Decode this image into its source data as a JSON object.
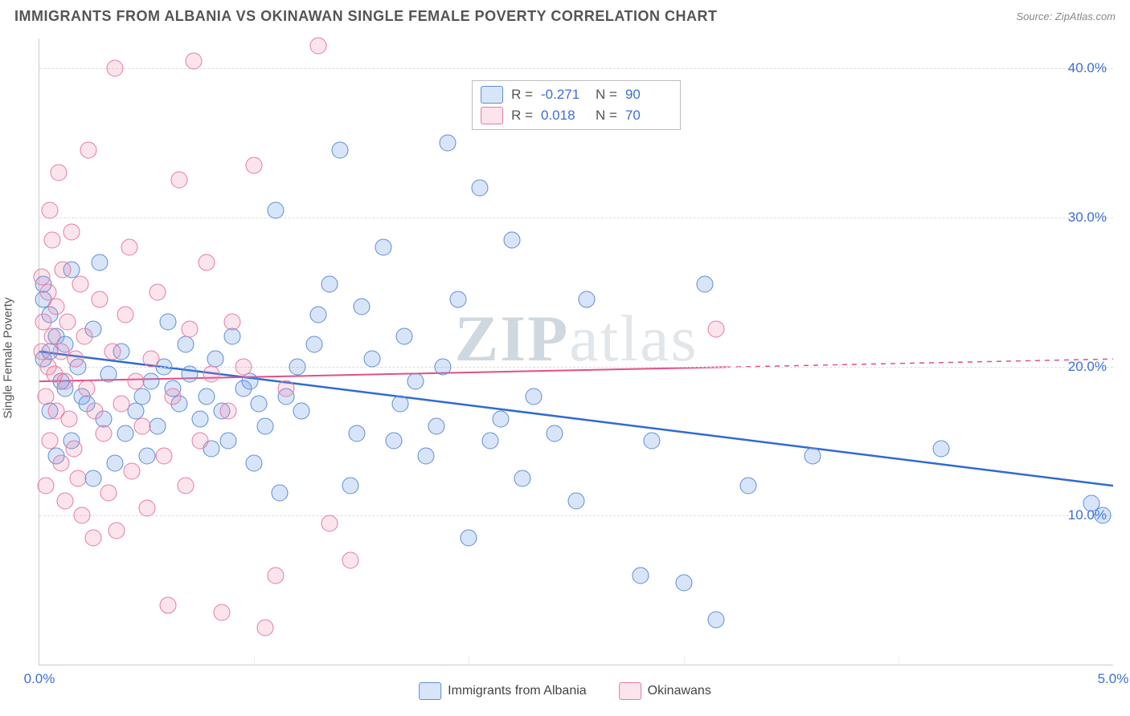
{
  "title": "IMMIGRANTS FROM ALBANIA VS OKINAWAN SINGLE FEMALE POVERTY CORRELATION CHART",
  "source": "Source: ZipAtlas.com",
  "ylabel": "Single Female Poverty",
  "watermark_a": "ZIP",
  "watermark_b": "atlas",
  "chart": {
    "type": "scatter-correlation",
    "xlim": [
      0.0,
      5.0
    ],
    "ylim": [
      0.0,
      42.0
    ],
    "xticks": [
      0.0,
      5.0
    ],
    "xticks_minor": [
      1.0,
      2.0,
      3.0,
      4.0
    ],
    "yticks": [
      10.0,
      20.0,
      30.0,
      40.0
    ],
    "ytick_labels": [
      "10.0%",
      "20.0%",
      "30.0%",
      "40.0%"
    ],
    "xtick_labels": [
      "0.0%",
      "5.0%"
    ],
    "background_color": "#ffffff",
    "grid_color": "#dddddd",
    "title_color": "#555555",
    "axis_label_color": "#555555",
    "tick_label_color": "#3b6fd6",
    "title_fontsize": 18,
    "tick_fontsize": 17,
    "label_fontsize": 15,
    "point_radius": 9,
    "series": [
      {
        "name": "Immigrants from Albania",
        "name_key": "albania",
        "color_fill": "rgba(100,150,230,0.25)",
        "color_stroke": "#5c8dd6",
        "color_hex": "#a9c3ec",
        "R": "-0.271",
        "N": "90",
        "trend": {
          "y_at_x0": 21.0,
          "y_at_x5": 12.0,
          "x_data_max": 5.0,
          "line_color": "#2f6bd0",
          "line_width": 2.5
        },
        "points": [
          [
            0.02,
            20.5
          ],
          [
            0.02,
            24.5
          ],
          [
            0.02,
            25.5
          ],
          [
            0.05,
            21.0
          ],
          [
            0.05,
            23.5
          ],
          [
            0.05,
            17.0
          ],
          [
            0.08,
            14.0
          ],
          [
            0.08,
            22.0
          ],
          [
            0.1,
            19.0
          ],
          [
            0.12,
            18.5
          ],
          [
            0.12,
            21.5
          ],
          [
            0.15,
            26.5
          ],
          [
            0.15,
            15.0
          ],
          [
            0.18,
            20.0
          ],
          [
            0.2,
            18.0
          ],
          [
            0.22,
            17.5
          ],
          [
            0.25,
            22.5
          ],
          [
            0.25,
            12.5
          ],
          [
            0.28,
            27.0
          ],
          [
            0.3,
            16.5
          ],
          [
            0.32,
            19.5
          ],
          [
            0.35,
            13.5
          ],
          [
            0.38,
            21.0
          ],
          [
            0.4,
            15.5
          ],
          [
            0.45,
            17.0
          ],
          [
            0.48,
            18.0
          ],
          [
            0.5,
            14.0
          ],
          [
            0.52,
            19.0
          ],
          [
            0.55,
            16.0
          ],
          [
            0.58,
            20.0
          ],
          [
            0.6,
            23.0
          ],
          [
            0.62,
            18.5
          ],
          [
            0.65,
            17.5
          ],
          [
            0.68,
            21.5
          ],
          [
            0.7,
            19.5
          ],
          [
            0.75,
            16.5
          ],
          [
            0.78,
            18.0
          ],
          [
            0.8,
            14.5
          ],
          [
            0.82,
            20.5
          ],
          [
            0.85,
            17.0
          ],
          [
            0.88,
            15.0
          ],
          [
            0.9,
            22.0
          ],
          [
            0.95,
            18.5
          ],
          [
            0.98,
            19.0
          ],
          [
            1.0,
            13.5
          ],
          [
            1.02,
            17.5
          ],
          [
            1.05,
            16.0
          ],
          [
            1.1,
            30.5
          ],
          [
            1.12,
            11.5
          ],
          [
            1.15,
            18.0
          ],
          [
            1.2,
            20.0
          ],
          [
            1.22,
            17.0
          ],
          [
            1.28,
            21.5
          ],
          [
            1.3,
            23.5
          ],
          [
            1.35,
            25.5
          ],
          [
            1.4,
            34.5
          ],
          [
            1.45,
            12.0
          ],
          [
            1.48,
            15.5
          ],
          [
            1.5,
            24.0
          ],
          [
            1.55,
            20.5
          ],
          [
            1.6,
            28.0
          ],
          [
            1.65,
            15.0
          ],
          [
            1.68,
            17.5
          ],
          [
            1.7,
            22.0
          ],
          [
            1.75,
            19.0
          ],
          [
            1.8,
            14.0
          ],
          [
            1.85,
            16.0
          ],
          [
            1.88,
            20.0
          ],
          [
            1.9,
            35.0
          ],
          [
            1.95,
            24.5
          ],
          [
            2.0,
            8.5
          ],
          [
            2.05,
            32.0
          ],
          [
            2.1,
            15.0
          ],
          [
            2.15,
            16.5
          ],
          [
            2.2,
            28.5
          ],
          [
            2.25,
            12.5
          ],
          [
            2.3,
            18.0
          ],
          [
            2.4,
            15.5
          ],
          [
            2.5,
            11.0
          ],
          [
            2.55,
            24.5
          ],
          [
            2.8,
            6.0
          ],
          [
            2.85,
            15.0
          ],
          [
            3.0,
            5.5
          ],
          [
            3.1,
            25.5
          ],
          [
            3.15,
            3.0
          ],
          [
            3.3,
            12.0
          ],
          [
            3.6,
            14.0
          ],
          [
            4.2,
            14.5
          ],
          [
            4.95,
            10.0
          ],
          [
            4.9,
            10.8
          ]
        ]
      },
      {
        "name": "Okinawans",
        "name_key": "okinawan",
        "color_fill": "rgba(240,120,160,0.20)",
        "color_stroke": "#e67aa0",
        "color_hex": "#f5b5ce",
        "R": "0.018",
        "N": "70",
        "trend": {
          "y_at_x0": 19.0,
          "y_at_x5": 20.5,
          "x_data_max": 3.2,
          "line_color": "#e44d86",
          "line_width": 2
        },
        "points": [
          [
            0.01,
            21.0
          ],
          [
            0.01,
            26.0
          ],
          [
            0.02,
            23.0
          ],
          [
            0.03,
            12.0
          ],
          [
            0.03,
            18.0
          ],
          [
            0.04,
            20.0
          ],
          [
            0.04,
            25.0
          ],
          [
            0.05,
            30.5
          ],
          [
            0.05,
            15.0
          ],
          [
            0.06,
            22.0
          ],
          [
            0.06,
            28.5
          ],
          [
            0.07,
            19.5
          ],
          [
            0.08,
            17.0
          ],
          [
            0.08,
            24.0
          ],
          [
            0.09,
            33.0
          ],
          [
            0.1,
            13.5
          ],
          [
            0.1,
            21.0
          ],
          [
            0.11,
            26.5
          ],
          [
            0.12,
            11.0
          ],
          [
            0.12,
            19.0
          ],
          [
            0.13,
            23.0
          ],
          [
            0.14,
            16.5
          ],
          [
            0.15,
            29.0
          ],
          [
            0.16,
            14.5
          ],
          [
            0.17,
            20.5
          ],
          [
            0.18,
            12.5
          ],
          [
            0.19,
            25.5
          ],
          [
            0.2,
            10.0
          ],
          [
            0.21,
            22.0
          ],
          [
            0.22,
            18.5
          ],
          [
            0.23,
            34.5
          ],
          [
            0.25,
            8.5
          ],
          [
            0.26,
            17.0
          ],
          [
            0.28,
            24.5
          ],
          [
            0.3,
            15.5
          ],
          [
            0.32,
            11.5
          ],
          [
            0.34,
            21.0
          ],
          [
            0.35,
            40.0
          ],
          [
            0.36,
            9.0
          ],
          [
            0.38,
            17.5
          ],
          [
            0.4,
            23.5
          ],
          [
            0.42,
            28.0
          ],
          [
            0.43,
            13.0
          ],
          [
            0.45,
            19.0
          ],
          [
            0.48,
            16.0
          ],
          [
            0.5,
            10.5
          ],
          [
            0.52,
            20.5
          ],
          [
            0.55,
            25.0
          ],
          [
            0.58,
            14.0
          ],
          [
            0.6,
            4.0
          ],
          [
            0.62,
            18.0
          ],
          [
            0.65,
            32.5
          ],
          [
            0.68,
            12.0
          ],
          [
            0.7,
            22.5
          ],
          [
            0.72,
            40.5
          ],
          [
            0.75,
            15.0
          ],
          [
            0.78,
            27.0
          ],
          [
            0.8,
            19.5
          ],
          [
            0.85,
            3.5
          ],
          [
            0.88,
            17.0
          ],
          [
            0.9,
            23.0
          ],
          [
            0.95,
            20.0
          ],
          [
            1.0,
            33.5
          ],
          [
            1.05,
            2.5
          ],
          [
            1.1,
            6.0
          ],
          [
            1.15,
            18.5
          ],
          [
            1.3,
            41.5
          ],
          [
            1.35,
            9.5
          ],
          [
            1.45,
            7.0
          ],
          [
            3.15,
            22.5
          ]
        ]
      }
    ],
    "legend_top": {
      "R_label": "R =",
      "N_label": "N ="
    },
    "legend_bottom_series": [
      "Immigrants from Albania",
      "Okinawans"
    ]
  }
}
